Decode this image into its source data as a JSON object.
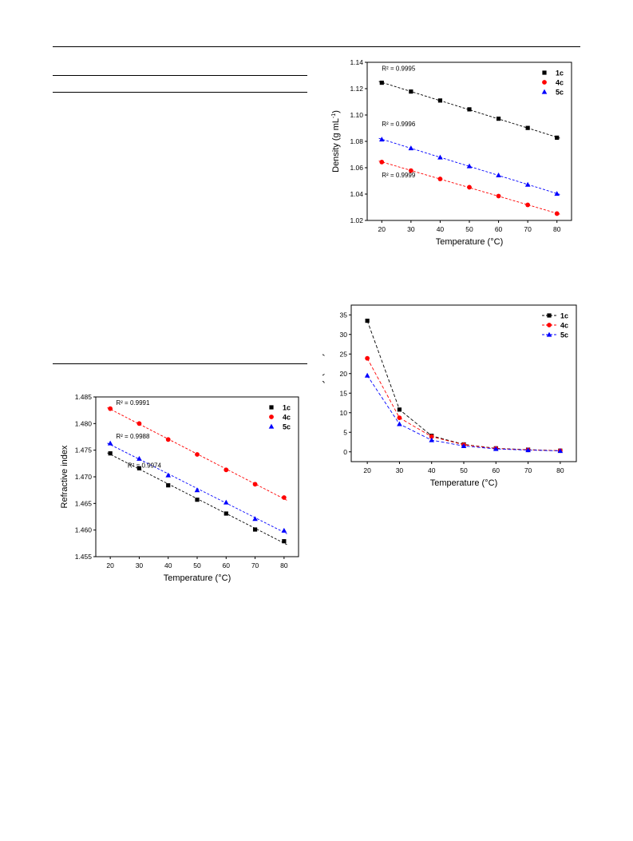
{
  "colors": {
    "1c": "#000000",
    "4c": "#ff0000",
    "5c": "#0000ff"
  },
  "chart_data": [
    {
      "id": "density",
      "type": "scatter",
      "xlabel": "Temperature (°C)",
      "ylabel_parts": [
        "Density (g mL",
        "-1",
        ")"
      ],
      "xlim": [
        15,
        85
      ],
      "ylim": [
        1.02,
        1.14
      ],
      "xticks": [
        20,
        30,
        40,
        50,
        60,
        70,
        80
      ],
      "yticks": [
        1.02,
        1.04,
        1.06,
        1.08,
        1.1,
        1.12,
        1.14
      ],
      "ytick_decimals": 2,
      "legend": "top-right",
      "fit_lines": true,
      "connect": "none",
      "series": [
        {
          "name": "1c",
          "marker": "square",
          "x": [
            20,
            30,
            40,
            50,
            60,
            70,
            80
          ],
          "y": [
            1.1245,
            1.1178,
            1.111,
            1.1043,
            1.0972,
            1.0902,
            1.0828
          ]
        },
        {
          "name": "4c",
          "marker": "circle",
          "x": [
            20,
            30,
            40,
            50,
            60,
            70,
            80
          ],
          "y": [
            1.0643,
            1.0578,
            1.0515,
            1.0452,
            1.0385,
            1.0318,
            1.0252
          ]
        },
        {
          "name": "5c",
          "marker": "triangle",
          "x": [
            20,
            30,
            40,
            50,
            60,
            70,
            80
          ],
          "y": [
            1.0815,
            1.0748,
            1.0679,
            1.0612,
            1.0543,
            1.0472,
            1.0403
          ]
        }
      ],
      "annotations": [
        {
          "label": "R² = 0.9995",
          "x": 20,
          "y": 1.1335
        },
        {
          "label": "R² = 0.9996",
          "x": 20,
          "y": 1.0915
        },
        {
          "label": "R² = 0.9999",
          "x": 20,
          "y": 1.0526
        }
      ]
    },
    {
      "id": "viscosity",
      "type": "line",
      "xlabel": "Temperature (°C)",
      "ylabel_parts": [
        "Viscosity (Pa s)"
      ],
      "xlim": [
        15,
        85
      ],
      "ylim": [
        -2.5,
        37.5
      ],
      "xticks": [
        20,
        30,
        40,
        50,
        60,
        70,
        80
      ],
      "yticks": [
        0,
        5,
        10,
        15,
        20,
        25,
        30,
        35
      ],
      "ytick_decimals": 0,
      "legend": "top-right",
      "fit_lines": false,
      "connect": "dashed",
      "series": [
        {
          "name": "1c",
          "marker": "square",
          "x": [
            20,
            30,
            40,
            50,
            60,
            70,
            80
          ],
          "y": [
            33.5,
            10.8,
            4.1,
            1.9,
            0.9,
            0.55,
            0.3
          ]
        },
        {
          "name": "4c",
          "marker": "circle",
          "x": [
            20,
            30,
            40,
            50,
            60,
            70,
            80
          ],
          "y": [
            23.9,
            8.7,
            3.9,
            1.8,
            0.85,
            0.5,
            0.3
          ]
        },
        {
          "name": "5c",
          "marker": "triangle",
          "x": [
            20,
            30,
            40,
            50,
            60,
            70,
            80
          ],
          "y": [
            19.5,
            7.1,
            3.0,
            1.5,
            0.75,
            0.45,
            0.25
          ]
        }
      ],
      "annotations": []
    },
    {
      "id": "refractive",
      "type": "scatter",
      "xlabel": "Temperature (°C)",
      "ylabel_parts": [
        "Refractive index"
      ],
      "xlim": [
        15,
        85
      ],
      "ylim": [
        1.455,
        1.485
      ],
      "xticks": [
        20,
        30,
        40,
        50,
        60,
        70,
        80
      ],
      "yticks": [
        1.455,
        1.46,
        1.465,
        1.47,
        1.475,
        1.48,
        1.485
      ],
      "ytick_decimals": 3,
      "legend": "top-right",
      "fit_lines": true,
      "connect": "none",
      "series": [
        {
          "name": "1c",
          "marker": "square",
          "x": [
            20,
            30,
            40,
            50,
            60,
            70,
            80
          ],
          "y": [
            1.4744,
            1.4716,
            1.4684,
            1.4657,
            1.4631,
            1.4601,
            1.4579
          ]
        },
        {
          "name": "4c",
          "marker": "circle",
          "x": [
            20,
            30,
            40,
            50,
            60,
            70,
            80
          ],
          "y": [
            1.4828,
            1.48,
            1.477,
            1.4742,
            1.4713,
            1.4686,
            1.4661
          ]
        },
        {
          "name": "5c",
          "marker": "triangle",
          "x": [
            20,
            30,
            40,
            50,
            60,
            70,
            80
          ],
          "y": [
            1.4763,
            1.4734,
            1.4703,
            1.4675,
            1.4652,
            1.4621,
            1.4599
          ]
        }
      ],
      "annotations": [
        {
          "label": "R² = 0.9991",
          "x": 22,
          "y": 1.4835
        },
        {
          "label": "R² = 0.9988",
          "x": 22,
          "y": 1.4772
        },
        {
          "label": "R² = 0.9974",
          "x": 26,
          "y": 1.4717
        }
      ]
    }
  ]
}
